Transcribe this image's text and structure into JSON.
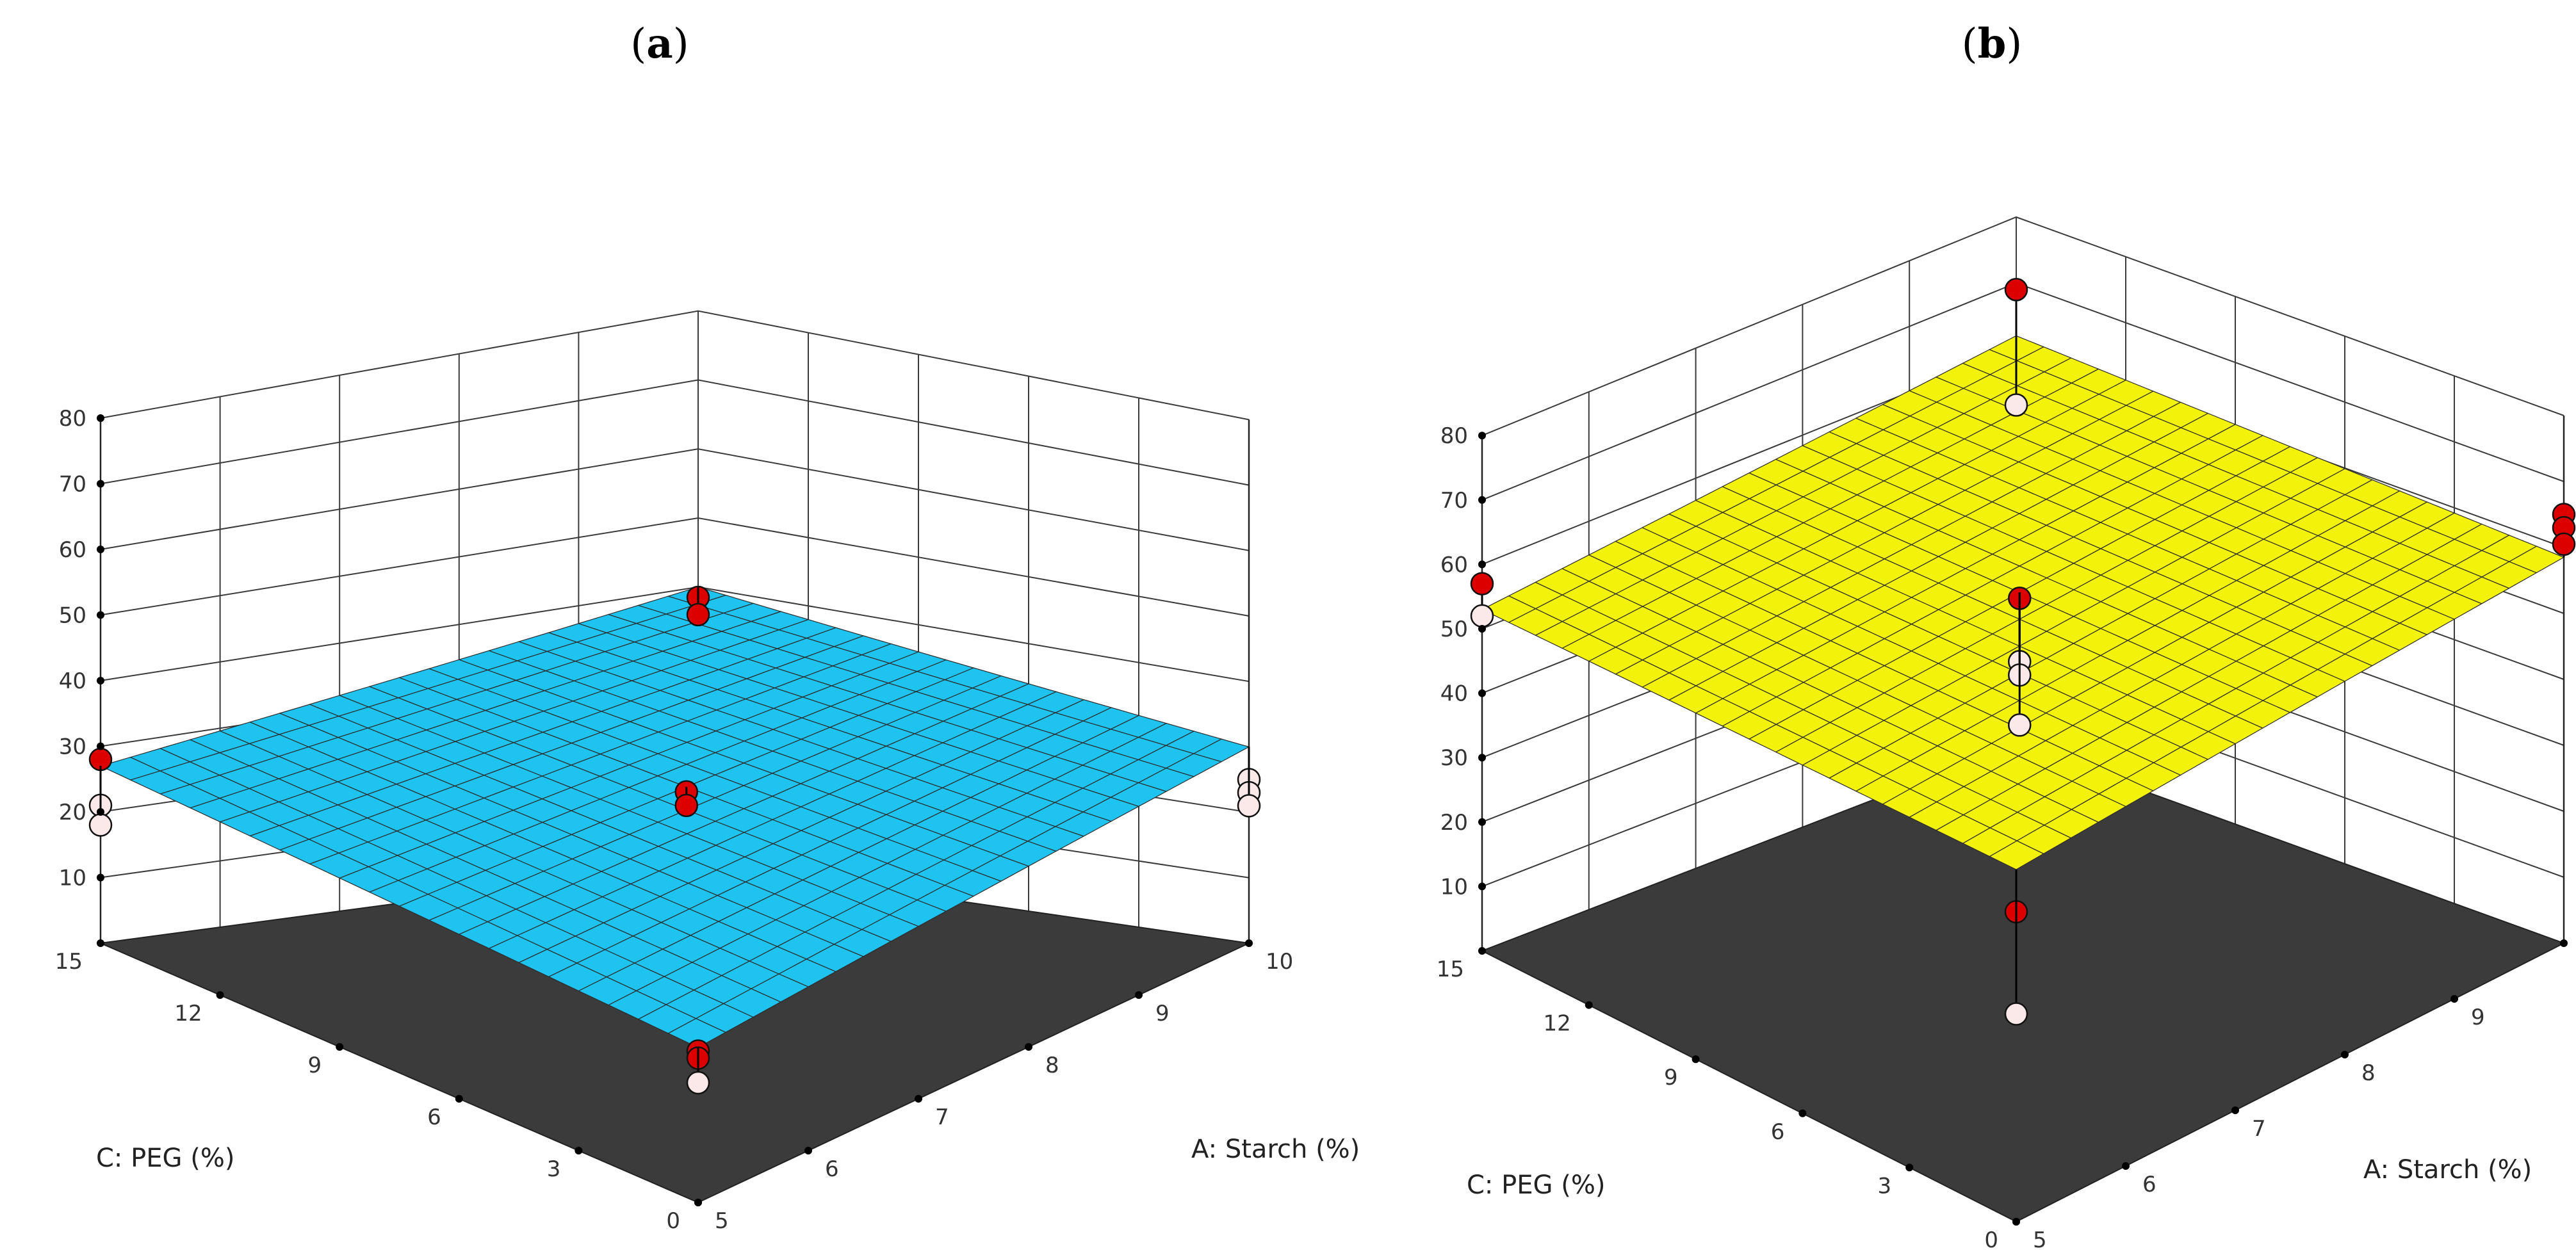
{
  "figure": {
    "panels": [
      {
        "id": "a",
        "label_prefix": "(",
        "label_letter": "a",
        "label_suffix": ")"
      },
      {
        "id": "b",
        "label_prefix": "(",
        "label_letter": "b",
        "label_suffix": ")"
      }
    ]
  },
  "chart_data": [
    {
      "type": "surface3d",
      "panel": "a",
      "surface_color": "#1fc3ef",
      "x_axis": {
        "label": "A: Starch (%)",
        "ticks": [
          5,
          6,
          7,
          8,
          9,
          10
        ],
        "range": [
          5,
          10
        ]
      },
      "y_axis": {
        "label": "C: PEG (%)",
        "ticks": [
          0,
          3,
          6,
          9,
          12,
          15
        ],
        "range": [
          0,
          15
        ]
      },
      "z_axis": {
        "label": "",
        "ticks": [
          10,
          20,
          30,
          40,
          50,
          60,
          70,
          80
        ],
        "range": [
          0,
          80
        ]
      },
      "plane_corners": {
        "A5_C0": 22,
        "A10_C0": 30,
        "A10_C15": 40,
        "A5_C15": 27
      },
      "design_points": [
        {
          "A": 5,
          "C": 15,
          "values": [
            28,
            21,
            18
          ],
          "above_surface": [
            true,
            false,
            false
          ]
        },
        {
          "A": 10,
          "C": 15,
          "values": [
            38.5,
            36
          ],
          "above_surface": [
            true,
            true
          ]
        },
        {
          "A": 7.5,
          "C": 7.5,
          "values": [
            29,
            27
          ],
          "above_surface": [
            true,
            true
          ]
        },
        {
          "A": 5,
          "C": 0,
          "values": [
            21.5,
            20.5,
            17
          ],
          "above_surface": [
            true,
            true,
            false
          ]
        },
        {
          "A": 10,
          "C": 0,
          "values": [
            25,
            23,
            21
          ],
          "above_surface": [
            false,
            false,
            false
          ]
        }
      ]
    },
    {
      "type": "surface3d",
      "panel": "b",
      "surface_color": "#f2f20a",
      "x_axis": {
        "label": "A: Starch (%)",
        "ticks": [
          5,
          6,
          7,
          8,
          9,
          10
        ],
        "range": [
          5,
          10
        ]
      },
      "y_axis": {
        "label": "C: PEG (%)",
        "ticks": [
          0,
          3,
          6,
          9,
          12,
          15
        ],
        "range": [
          0,
          15
        ]
      },
      "z_axis": {
        "label": "",
        "ticks": [
          10,
          20,
          30,
          40,
          50,
          60,
          70,
          80
        ],
        "range": [
          0,
          80
        ]
      },
      "plane_corners": {
        "A5_C0": 50,
        "A10_C0": 58.5,
        "A10_C15": 62,
        "A5_C15": 53
      },
      "design_points": [
        {
          "A": 5,
          "C": 15,
          "values": [
            57,
            52
          ],
          "above_surface": [
            true,
            false
          ]
        },
        {
          "A": 10,
          "C": 15,
          "values": [
            69,
            51.5
          ],
          "above_surface": [
            true,
            false
          ]
        },
        {
          "A": 7.5,
          "C": 7.5,
          "values": [
            55,
            45.5,
            43.5,
            36
          ],
          "above_surface": [
            true,
            false,
            false,
            false
          ]
        },
        {
          "A": 5,
          "C": 0,
          "values": [
            44,
            29.5
          ],
          "above_surface": [
            true,
            false
          ]
        },
        {
          "A": 10,
          "C": 0,
          "values": [
            65,
            63,
            60.5
          ],
          "above_surface": [
            true,
            true,
            true
          ]
        }
      ]
    }
  ]
}
